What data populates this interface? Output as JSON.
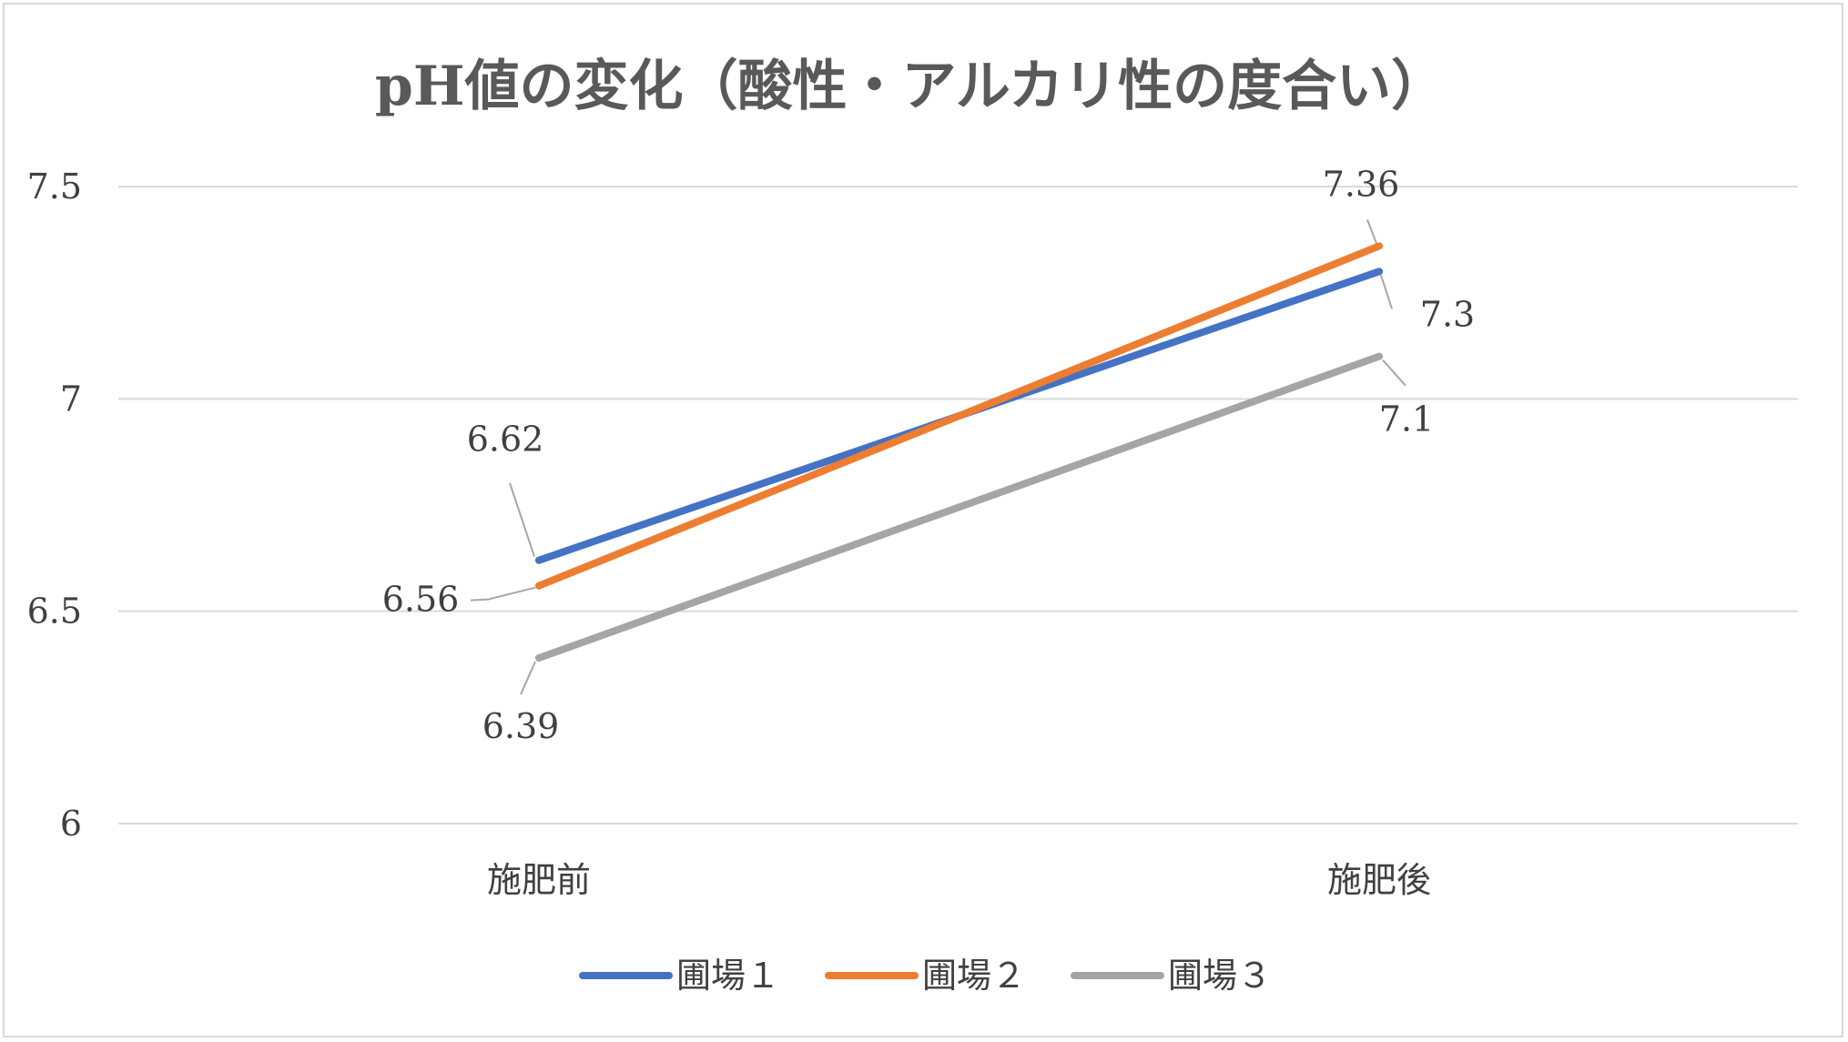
{
  "chart_data": {
    "type": "line",
    "title": "pH値の変化（酸性・アルカリ性の度合い）",
    "categories": [
      "施肥前",
      "施肥後"
    ],
    "ylim": [
      6,
      7.5
    ],
    "yticks": [
      "6",
      "6.5",
      "7",
      "7.5"
    ],
    "grid": true,
    "legend_position": "bottom",
    "series": [
      {
        "name": "圃場１",
        "values": [
          6.62,
          7.3
        ],
        "labels": [
          "6.62",
          "7.3"
        ],
        "color": "#4472c4"
      },
      {
        "name": "圃場２",
        "values": [
          6.56,
          7.36
        ],
        "labels": [
          "6.56",
          "7.36"
        ],
        "color": "#ed7d31"
      },
      {
        "name": "圃場３",
        "values": [
          6.39,
          7.1
        ],
        "labels": [
          "6.39",
          "7.1"
        ],
        "color": "#a5a5a5"
      }
    ]
  }
}
